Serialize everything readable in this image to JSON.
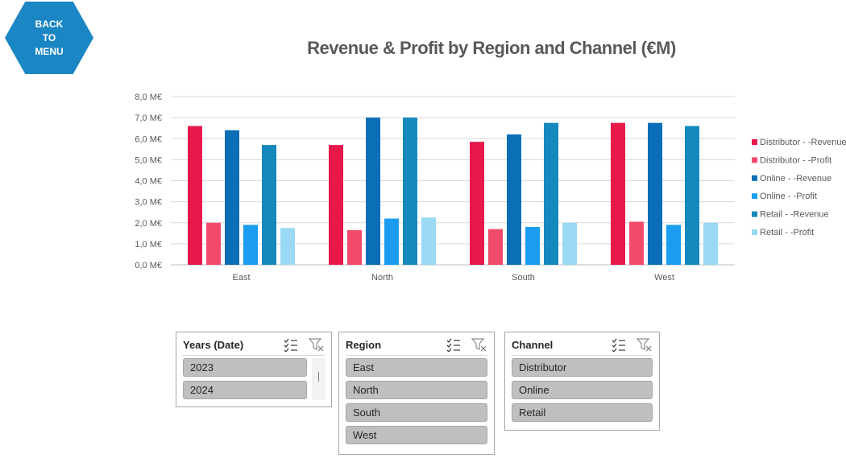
{
  "back_button": {
    "label": "BACK\nTO\nMENU"
  },
  "chart_data": {
    "type": "bar",
    "title": "Revenue & Profit by Region and Channel (€M)",
    "categories": [
      "East",
      "North",
      "South",
      "West"
    ],
    "y_tick_labels": [
      "0,0 M€",
      "1,0 M€",
      "2,0 M€",
      "3,0 M€",
      "4,0 M€",
      "5,0 M€",
      "6,0 M€",
      "7,0 M€",
      "8,0 M€"
    ],
    "ylim": [
      0,
      8
    ],
    "grid": true,
    "legend_position": "right",
    "series": [
      {
        "name": "Distributor - -Revenue",
        "color": "#e8194a",
        "values": [
          6.6,
          5.7,
          5.85,
          6.75
        ]
      },
      {
        "name": "Distributor - -Profit",
        "color": "#f24a6b",
        "values": [
          2.0,
          1.65,
          1.7,
          2.05
        ]
      },
      {
        "name": "Online - -Revenue",
        "color": "#0b6fb8",
        "values": [
          6.4,
          7.0,
          6.2,
          6.75
        ]
      },
      {
        "name": "Online - -Profit",
        "color": "#1a9cf0",
        "values": [
          1.9,
          2.2,
          1.8,
          1.9
        ]
      },
      {
        "name": "Retail - -Revenue",
        "color": "#1589bd",
        "values": [
          5.7,
          7.0,
          6.75,
          6.6
        ]
      },
      {
        "name": "Retail - -Profit",
        "color": "#9ad9f3",
        "values": [
          1.75,
          2.25,
          2.0,
          2.0
        ]
      }
    ]
  },
  "slicers": [
    {
      "title": "Years (Date)",
      "items": [
        "2023",
        "2024"
      ]
    },
    {
      "title": "Region",
      "items": [
        "East",
        "North",
        "South",
        "West"
      ]
    },
    {
      "title": "Channel",
      "items": [
        "Distributor",
        "Online",
        "Retail"
      ]
    }
  ]
}
